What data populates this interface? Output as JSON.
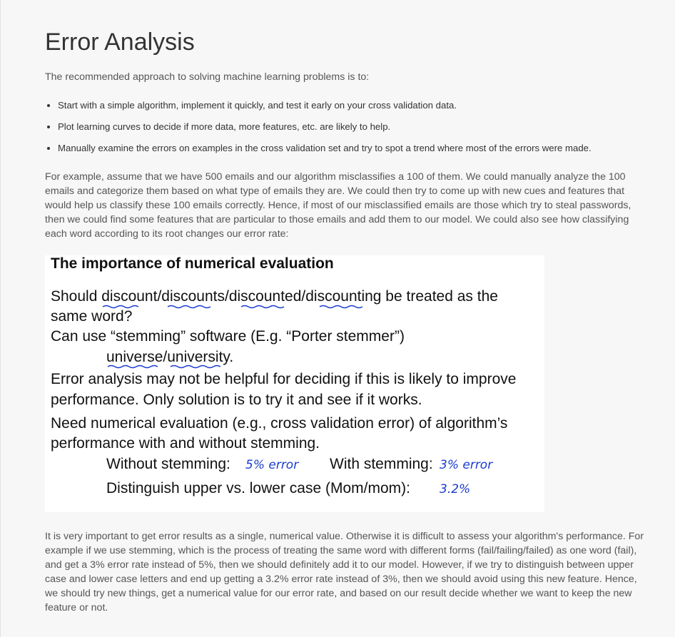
{
  "header": {
    "title": "Error Analysis"
  },
  "intro": "The recommended approach to solving machine learning problems is to:",
  "bullets": [
    "Start with a simple algorithm, implement it quickly, and test it early on your cross validation data.",
    "Plot learning curves to decide if more data, more features, etc. are likely to help.",
    "Manually examine the errors on examples in the cross validation set and try to spot a trend where most of the errors were made."
  ],
  "paragraph": "For example, assume that we have 500 emails and our algorithm misclassifies a 100 of them. We could manually analyze the 100 emails and categorize them based on what type of emails they are. We could then try to come up with new cues and features that would help us classify these 100 emails correctly. Hence, if most of our misclassified emails are those which try to steal passwords, then we could find some features that are particular to those emails and add them to our model. We could also see how classifying each word according to its root changes our error rate:",
  "slide": {
    "title": "The importance of numerical evaluation",
    "lines": [
      "Should discount/discounts/discounted/discounting be treated as the",
      "same word?",
      "Can use “stemming” software (E.g. “Porter stemmer”)",
      "universe/university.",
      "Error analysis may not be helpful for deciding if this is likely to improve",
      "performance. Only solution is to try it and see if it works.",
      "Need numerical evaluation (e.g., cross validation error) of algorithm’s",
      "performance with and without stemming."
    ],
    "without_label": "Without stemming:",
    "without_note": "5% error",
    "with_label": "With stemming:",
    "with_note": "3% error",
    "case_label": "Distinguish upper vs. lower case (Mom/mom):",
    "case_note": "3.2%"
  },
  "conclusion": "It is very important to get error results as a single, numerical value. Otherwise it is difficult to assess your algorithm's performance. For example if we use stemming, which is the process of treating the same word with different forms (fail/failing/failed) as one word (fail), and get a 3% error rate instead of 5%, then we should definitely add it to our model. However, if we try to distinguish between upper case and lower case letters and end up getting a 3.2% error rate instead of 3%, then we should avoid using this new feature. Hence, we should try new things, get a numerical value for our error rate, and based on our result decide whether we want to keep the new feature or not."
}
